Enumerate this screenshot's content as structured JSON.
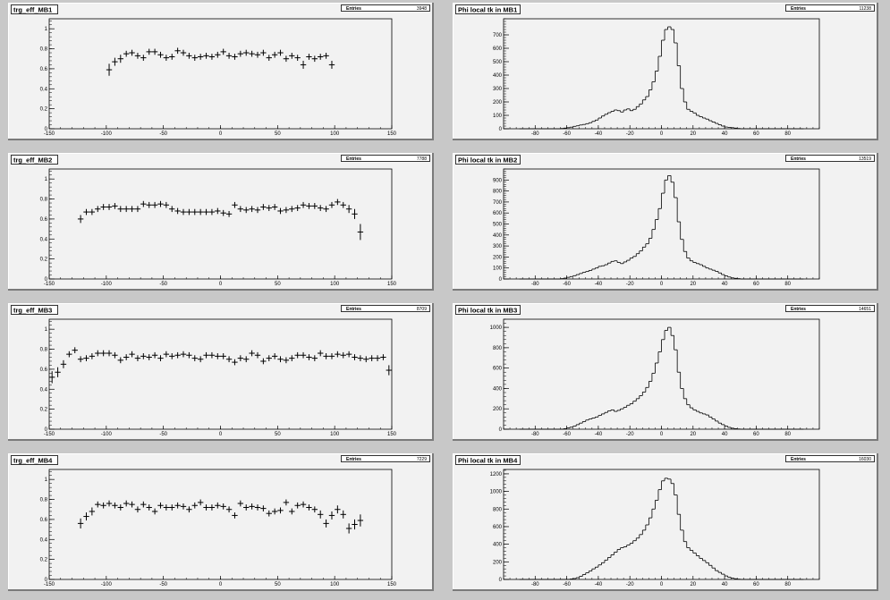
{
  "chart_data": [
    {
      "type": "scatter",
      "title": "trg_eff_MB1",
      "stats": {
        "label": "Entries",
        "value": "3948"
      },
      "xlim": [
        -150,
        150
      ],
      "ylim": [
        0,
        1.1
      ],
      "xticks": [
        -150,
        -100,
        -50,
        0,
        50,
        100,
        150
      ],
      "yticks": [
        0,
        0.2,
        0.4,
        0.6,
        0.8,
        1
      ],
      "x": [
        -97.5,
        -92.5,
        -87.5,
        -82.5,
        -77.5,
        -72.5,
        -67.5,
        -62.5,
        -57.5,
        -52.5,
        -47.5,
        -42.5,
        -37.5,
        -32.5,
        -27.5,
        -22.5,
        -17.5,
        -12.5,
        -7.5,
        -2.5,
        2.5,
        7.5,
        12.5,
        17.5,
        22.5,
        27.5,
        32.5,
        37.5,
        42.5,
        47.5,
        52.5,
        57.5,
        62.5,
        67.5,
        72.5,
        77.5,
        82.5,
        87.5,
        92.5,
        97.5
      ],
      "y": [
        0.59,
        0.67,
        0.7,
        0.75,
        0.76,
        0.73,
        0.71,
        0.77,
        0.77,
        0.74,
        0.71,
        0.72,
        0.78,
        0.76,
        0.73,
        0.71,
        0.72,
        0.73,
        0.72,
        0.74,
        0.77,
        0.73,
        0.72,
        0.75,
        0.76,
        0.75,
        0.74,
        0.76,
        0.71,
        0.74,
        0.76,
        0.7,
        0.73,
        0.71,
        0.64,
        0.72,
        0.7,
        0.72,
        0.73,
        0.64
      ],
      "yerr": [
        0.06,
        0.04,
        0.04,
        0.03,
        0.03,
        0.03,
        0.03,
        0.03,
        0.03,
        0.03,
        0.03,
        0.03,
        0.03,
        0.03,
        0.03,
        0.03,
        0.03,
        0.03,
        0.03,
        0.03,
        0.03,
        0.03,
        0.03,
        0.03,
        0.03,
        0.03,
        0.03,
        0.03,
        0.03,
        0.03,
        0.03,
        0.03,
        0.03,
        0.03,
        0.04,
        0.03,
        0.03,
        0.03,
        0.03,
        0.04
      ]
    },
    {
      "type": "bar",
      "title": "Phi local tk in MB1",
      "stats": {
        "label": "Entries",
        "value": "11238"
      },
      "xlim": [
        -100,
        100
      ],
      "ylim": [
        0,
        820
      ],
      "xticks": [
        -80,
        -60,
        -40,
        -20,
        0,
        20,
        40,
        60,
        80
      ],
      "yticks": [
        0,
        100,
        200,
        300,
        400,
        500,
        600,
        700
      ],
      "bin_start": -90,
      "bin_width": 2,
      "values": [
        0,
        0,
        0,
        0,
        0,
        0,
        0,
        0,
        0,
        0,
        0,
        0,
        0,
        2,
        5,
        8,
        12,
        18,
        22,
        28,
        32,
        38,
        45,
        55,
        65,
        80,
        95,
        108,
        120,
        130,
        140,
        135,
        125,
        140,
        148,
        135,
        145,
        165,
        185,
        215,
        240,
        290,
        350,
        430,
        540,
        660,
        740,
        760,
        740,
        640,
        470,
        300,
        200,
        145,
        130,
        118,
        100,
        90,
        80,
        72,
        60,
        50,
        40,
        30,
        20,
        13,
        10,
        8,
        5,
        2,
        0,
        0,
        0,
        0,
        0,
        0,
        0,
        0,
        0,
        0,
        0,
        0,
        0,
        0,
        0,
        0,
        0,
        0,
        0,
        0
      ]
    },
    {
      "type": "scatter",
      "title": "trg_eff_MB2",
      "stats": {
        "label": "Entries",
        "value": "7788"
      },
      "xlim": [
        -150,
        150
      ],
      "ylim": [
        0,
        1.1
      ],
      "xticks": [
        -150,
        -100,
        -50,
        0,
        50,
        100,
        150
      ],
      "yticks": [
        0,
        0.2,
        0.4,
        0.6,
        0.8,
        1
      ],
      "x": [
        -122.5,
        -117.5,
        -112.5,
        -107.5,
        -102.5,
        -97.5,
        -92.5,
        -87.5,
        -82.5,
        -77.5,
        -72.5,
        -67.5,
        -62.5,
        -57.5,
        -52.5,
        -47.5,
        -42.5,
        -37.5,
        -32.5,
        -27.5,
        -22.5,
        -17.5,
        -12.5,
        -7.5,
        -2.5,
        2.5,
        7.5,
        12.5,
        17.5,
        22.5,
        27.5,
        32.5,
        37.5,
        42.5,
        47.5,
        52.5,
        57.5,
        62.5,
        67.5,
        72.5,
        77.5,
        82.5,
        87.5,
        92.5,
        97.5,
        102.5,
        107.5,
        112.5,
        117.5,
        122.5
      ],
      "y": [
        0.6,
        0.67,
        0.67,
        0.7,
        0.72,
        0.72,
        0.73,
        0.7,
        0.7,
        0.7,
        0.7,
        0.75,
        0.74,
        0.74,
        0.75,
        0.74,
        0.7,
        0.68,
        0.67,
        0.67,
        0.67,
        0.67,
        0.67,
        0.67,
        0.68,
        0.66,
        0.65,
        0.74,
        0.7,
        0.69,
        0.7,
        0.69,
        0.72,
        0.71,
        0.72,
        0.68,
        0.69,
        0.7,
        0.71,
        0.74,
        0.73,
        0.73,
        0.71,
        0.7,
        0.74,
        0.77,
        0.74,
        0.7,
        0.65,
        0.47
      ],
      "yerr": [
        0.04,
        0.03,
        0.03,
        0.03,
        0.03,
        0.03,
        0.03,
        0.03,
        0.03,
        0.03,
        0.03,
        0.03,
        0.03,
        0.03,
        0.03,
        0.03,
        0.03,
        0.03,
        0.03,
        0.03,
        0.03,
        0.03,
        0.03,
        0.03,
        0.03,
        0.03,
        0.03,
        0.03,
        0.03,
        0.03,
        0.03,
        0.03,
        0.03,
        0.03,
        0.03,
        0.03,
        0.03,
        0.03,
        0.03,
        0.03,
        0.03,
        0.03,
        0.03,
        0.03,
        0.03,
        0.03,
        0.03,
        0.04,
        0.05,
        0.08
      ]
    },
    {
      "type": "bar",
      "title": "Phi local tk in MB2",
      "stats": {
        "label": "Entries",
        "value": "13519"
      },
      "xlim": [
        -100,
        100
      ],
      "ylim": [
        0,
        1000
      ],
      "xticks": [
        -80,
        -60,
        -40,
        -20,
        0,
        20,
        40,
        60,
        80
      ],
      "yticks": [
        0,
        100,
        200,
        300,
        400,
        500,
        600,
        700,
        800,
        900
      ],
      "bin_start": -90,
      "bin_width": 2,
      "values": [
        0,
        0,
        0,
        0,
        0,
        0,
        0,
        0,
        0,
        0,
        0,
        0,
        0,
        3,
        8,
        15,
        22,
        30,
        40,
        50,
        60,
        68,
        78,
        90,
        100,
        115,
        120,
        130,
        145,
        160,
        165,
        150,
        140,
        155,
        170,
        190,
        205,
        230,
        255,
        290,
        320,
        370,
        450,
        540,
        640,
        780,
        900,
        940,
        880,
        740,
        520,
        360,
        250,
        190,
        165,
        150,
        140,
        130,
        115,
        100,
        90,
        80,
        70,
        55,
        40,
        28,
        18,
        10,
        6,
        3,
        0,
        0,
        0,
        0,
        0,
        0,
        0,
        0,
        0,
        0,
        0,
        0,
        0,
        0,
        0,
        0,
        0,
        0,
        0,
        0
      ]
    },
    {
      "type": "scatter",
      "title": "trg_eff_MB3",
      "stats": {
        "label": "Entries",
        "value": "8709"
      },
      "xlim": [
        -150,
        150
      ],
      "ylim": [
        0,
        1.1
      ],
      "xticks": [
        -150,
        -100,
        -50,
        0,
        50,
        100,
        150
      ],
      "yticks": [
        0,
        0.2,
        0.4,
        0.6,
        0.8,
        1
      ],
      "x": [
        -147.5,
        -142.5,
        -137.5,
        -132.5,
        -127.5,
        -122.5,
        -117.5,
        -112.5,
        -107.5,
        -102.5,
        -97.5,
        -92.5,
        -87.5,
        -82.5,
        -77.5,
        -72.5,
        -67.5,
        -62.5,
        -57.5,
        -52.5,
        -47.5,
        -42.5,
        -37.5,
        -32.5,
        -27.5,
        -22.5,
        -17.5,
        -12.5,
        -7.5,
        -2.5,
        2.5,
        7.5,
        12.5,
        17.5,
        22.5,
        27.5,
        32.5,
        37.5,
        42.5,
        47.5,
        52.5,
        57.5,
        62.5,
        67.5,
        72.5,
        77.5,
        82.5,
        87.5,
        92.5,
        97.5,
        102.5,
        107.5,
        112.5,
        117.5,
        122.5,
        127.5,
        132.5,
        137.5,
        142.5,
        147.5
      ],
      "y": [
        0.52,
        0.57,
        0.65,
        0.75,
        0.79,
        0.7,
        0.71,
        0.73,
        0.76,
        0.76,
        0.76,
        0.74,
        0.69,
        0.72,
        0.75,
        0.71,
        0.73,
        0.72,
        0.74,
        0.71,
        0.75,
        0.73,
        0.74,
        0.75,
        0.74,
        0.71,
        0.7,
        0.74,
        0.74,
        0.73,
        0.73,
        0.7,
        0.67,
        0.71,
        0.7,
        0.76,
        0.74,
        0.68,
        0.71,
        0.73,
        0.7,
        0.69,
        0.71,
        0.74,
        0.74,
        0.72,
        0.71,
        0.76,
        0.73,
        0.73,
        0.75,
        0.74,
        0.75,
        0.72,
        0.71,
        0.7,
        0.71,
        0.71,
        0.72,
        0.59
      ],
      "yerr": [
        0.06,
        0.05,
        0.04,
        0.03,
        0.03,
        0.03,
        0.03,
        0.03,
        0.03,
        0.03,
        0.03,
        0.03,
        0.03,
        0.03,
        0.03,
        0.03,
        0.03,
        0.03,
        0.03,
        0.03,
        0.03,
        0.03,
        0.03,
        0.03,
        0.03,
        0.03,
        0.03,
        0.03,
        0.03,
        0.03,
        0.03,
        0.03,
        0.03,
        0.03,
        0.03,
        0.03,
        0.03,
        0.03,
        0.03,
        0.03,
        0.03,
        0.03,
        0.03,
        0.03,
        0.03,
        0.03,
        0.03,
        0.03,
        0.03,
        0.03,
        0.03,
        0.03,
        0.03,
        0.03,
        0.03,
        0.03,
        0.03,
        0.03,
        0.03,
        0.05
      ]
    },
    {
      "type": "bar",
      "title": "Phi local tk in MB3",
      "stats": {
        "label": "Entries",
        "value": "14651"
      },
      "xlim": [
        -100,
        100
      ],
      "ylim": [
        0,
        1080
      ],
      "xticks": [
        -80,
        -60,
        -40,
        -20,
        0,
        20,
        40,
        60,
        80
      ],
      "yticks": [
        0,
        200,
        400,
        600,
        800,
        1000
      ],
      "bin_start": -90,
      "bin_width": 2,
      "values": [
        0,
        0,
        0,
        0,
        0,
        0,
        0,
        0,
        0,
        0,
        0,
        0,
        0,
        0,
        5,
        12,
        20,
        30,
        45,
        60,
        75,
        90,
        100,
        110,
        120,
        135,
        150,
        165,
        180,
        190,
        175,
        185,
        200,
        215,
        235,
        250,
        275,
        300,
        330,
        365,
        410,
        470,
        550,
        650,
        760,
        880,
        970,
        1000,
        920,
        780,
        560,
        400,
        300,
        240,
        210,
        190,
        175,
        160,
        150,
        140,
        120,
        100,
        80,
        60,
        45,
        30,
        18,
        10,
        5,
        2,
        0,
        0,
        0,
        0,
        0,
        0,
        0,
        0,
        0,
        0,
        0,
        0,
        0,
        0,
        0,
        0,
        0,
        0,
        0,
        0
      ]
    },
    {
      "type": "scatter",
      "title": "trg_eff_MB4",
      "stats": {
        "label": "Entries",
        "value": "7229"
      },
      "xlim": [
        -150,
        150
      ],
      "ylim": [
        0,
        1.1
      ],
      "xticks": [
        -150,
        -100,
        -50,
        0,
        50,
        100,
        150
      ],
      "yticks": [
        0,
        0.2,
        0.4,
        0.6,
        0.8,
        1
      ],
      "x": [
        -122.5,
        -117.5,
        -112.5,
        -107.5,
        -102.5,
        -97.5,
        -92.5,
        -87.5,
        -82.5,
        -77.5,
        -72.5,
        -67.5,
        -62.5,
        -57.5,
        -52.5,
        -47.5,
        -42.5,
        -37.5,
        -32.5,
        -27.5,
        -22.5,
        -17.5,
        -12.5,
        -7.5,
        -2.5,
        2.5,
        7.5,
        12.5,
        17.5,
        22.5,
        27.5,
        32.5,
        37.5,
        42.5,
        47.5,
        52.5,
        57.5,
        62.5,
        67.5,
        72.5,
        77.5,
        82.5,
        87.5,
        92.5,
        97.5,
        102.5,
        107.5,
        112.5,
        117.5,
        122.5
      ],
      "y": [
        0.56,
        0.63,
        0.68,
        0.75,
        0.74,
        0.76,
        0.74,
        0.72,
        0.76,
        0.75,
        0.7,
        0.75,
        0.72,
        0.68,
        0.74,
        0.72,
        0.72,
        0.74,
        0.73,
        0.7,
        0.74,
        0.77,
        0.72,
        0.72,
        0.74,
        0.73,
        0.7,
        0.64,
        0.76,
        0.72,
        0.73,
        0.72,
        0.71,
        0.66,
        0.68,
        0.69,
        0.77,
        0.68,
        0.74,
        0.75,
        0.72,
        0.7,
        0.65,
        0.56,
        0.64,
        0.7,
        0.65,
        0.51,
        0.55,
        0.59
      ],
      "yerr": [
        0.05,
        0.04,
        0.04,
        0.03,
        0.03,
        0.03,
        0.03,
        0.03,
        0.03,
        0.03,
        0.03,
        0.03,
        0.03,
        0.03,
        0.03,
        0.03,
        0.03,
        0.03,
        0.03,
        0.03,
        0.03,
        0.03,
        0.03,
        0.03,
        0.03,
        0.03,
        0.03,
        0.03,
        0.03,
        0.03,
        0.03,
        0.03,
        0.03,
        0.03,
        0.03,
        0.03,
        0.03,
        0.03,
        0.03,
        0.03,
        0.03,
        0.03,
        0.04,
        0.04,
        0.04,
        0.04,
        0.04,
        0.05,
        0.05,
        0.06
      ]
    },
    {
      "type": "bar",
      "title": "Phi local tk in MB4",
      "stats": {
        "label": "Entries",
        "value": "16030"
      },
      "xlim": [
        -100,
        100
      ],
      "ylim": [
        0,
        1250
      ],
      "xticks": [
        -80,
        -60,
        -40,
        -20,
        0,
        20,
        40,
        60,
        80
      ],
      "yticks": [
        0,
        200,
        400,
        600,
        800,
        1000,
        1200
      ],
      "bin_start": -90,
      "bin_width": 2,
      "values": [
        0,
        0,
        0,
        0,
        0,
        0,
        0,
        0,
        0,
        0,
        0,
        0,
        0,
        0,
        0,
        0,
        5,
        10,
        20,
        35,
        55,
        75,
        95,
        120,
        140,
        165,
        190,
        220,
        250,
        280,
        310,
        340,
        360,
        370,
        390,
        410,
        440,
        470,
        510,
        560,
        620,
        700,
        800,
        900,
        1020,
        1120,
        1150,
        1140,
        1090,
        960,
        740,
        560,
        430,
        360,
        330,
        300,
        270,
        240,
        215,
        190,
        160,
        130,
        100,
        80,
        60,
        40,
        25,
        15,
        8,
        3,
        0,
        0,
        0,
        0,
        0,
        0,
        0,
        0,
        0,
        0,
        0,
        0,
        0,
        0,
        0,
        0,
        0,
        0,
        0,
        0
      ]
    }
  ]
}
